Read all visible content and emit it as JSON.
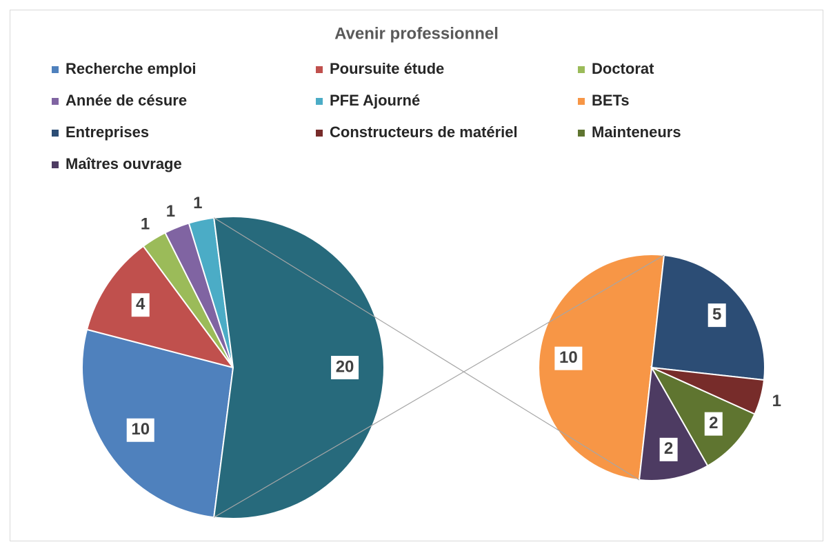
{
  "chart_data": {
    "type": "pie-of-pie",
    "title": "Avenir professionnel",
    "pie": {
      "categories": [
        "Recherche emploi",
        "Poursuite étude",
        "Doctorat",
        "Année de césure",
        "PFE Ajourné",
        null
      ],
      "values": [
        10,
        4,
        1,
        1,
        1,
        20
      ],
      "colors": [
        "#4f81bd",
        "#c0504d",
        "#9bbb59",
        "#8064a2",
        "#4bacc6",
        "#276a7c"
      ]
    },
    "sub_pie": {
      "categories": [
        "BETs",
        "Entreprises",
        "Constructeurs de matériel",
        "Mainteneurs",
        "Maîtres ouvrage"
      ],
      "values": [
        10,
        5,
        1,
        2,
        2
      ],
      "colors": [
        "#f79646",
        "#2c4d75",
        "#772c2a",
        "#5f7530",
        "#4d3b62"
      ]
    },
    "legend": true
  }
}
